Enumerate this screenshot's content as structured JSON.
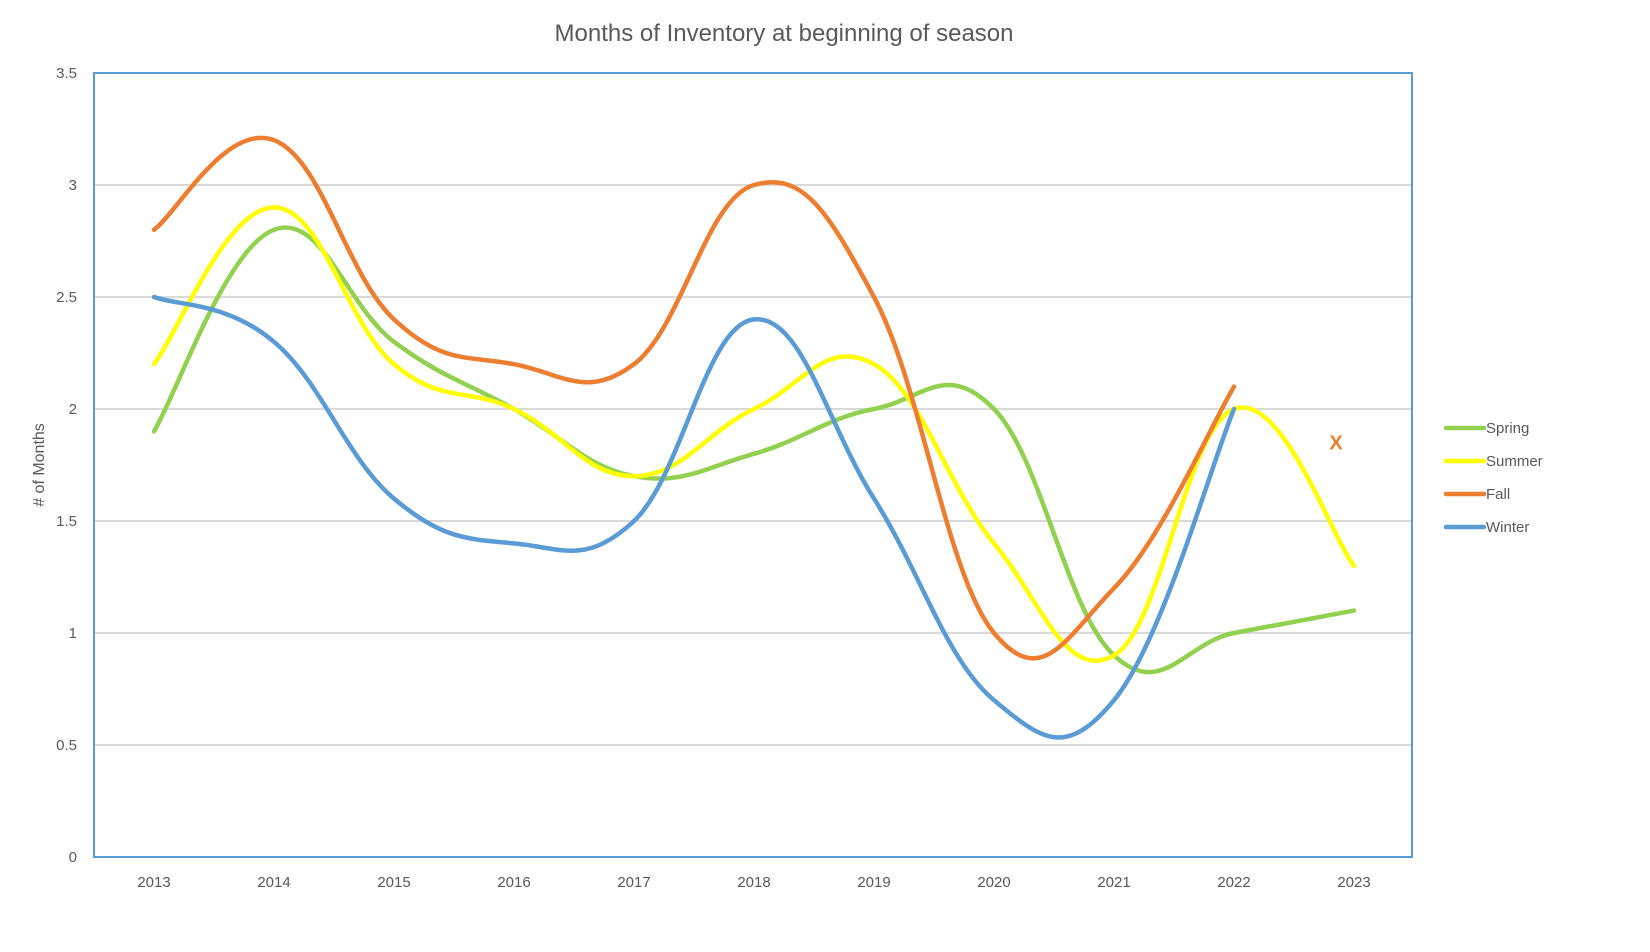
{
  "chart_data": {
    "type": "line",
    "title": "Months of Inventory at beginning of season",
    "xlabel": "",
    "ylabel": "# of Months",
    "categories": [
      "2013",
      "2014",
      "2015",
      "2016",
      "2017",
      "2018",
      "2019",
      "2020",
      "2021",
      "2022",
      "2023"
    ],
    "ylim": [
      0,
      3.5
    ],
    "yticks": [
      "0",
      "0.5",
      "1",
      "1.5",
      "2",
      "2.5",
      "3",
      "3.5"
    ],
    "grid": true,
    "smooth": true,
    "legend_position": "right",
    "series": [
      {
        "name": "Spring",
        "color": "#92d050",
        "values": [
          1.9,
          2.8,
          2.3,
          2.0,
          1.7,
          1.8,
          2.0,
          2.0,
          0.9,
          1.0,
          1.1
        ]
      },
      {
        "name": "Summer",
        "color": "#ffff00",
        "values": [
          2.2,
          2.9,
          2.2,
          2.0,
          1.7,
          2.0,
          2.2,
          1.4,
          0.9,
          2.0,
          1.3
        ]
      },
      {
        "name": "Fall",
        "color": "#ed7d31",
        "values": [
          2.8,
          3.2,
          2.4,
          2.2,
          2.2,
          3.0,
          2.5,
          1.0,
          1.2,
          2.1,
          null
        ]
      },
      {
        "name": "Winter",
        "color": "#5b9bd5",
        "values": [
          2.5,
          2.3,
          1.6,
          1.4,
          1.5,
          2.4,
          1.6,
          0.7,
          0.7,
          2.0,
          null
        ]
      }
    ],
    "annotations": [
      {
        "text": "X",
        "series": "Fall",
        "x": "2023",
        "y": 1.85,
        "color": "#ed7d31"
      }
    ]
  },
  "frame_color": "#5b9bd5"
}
